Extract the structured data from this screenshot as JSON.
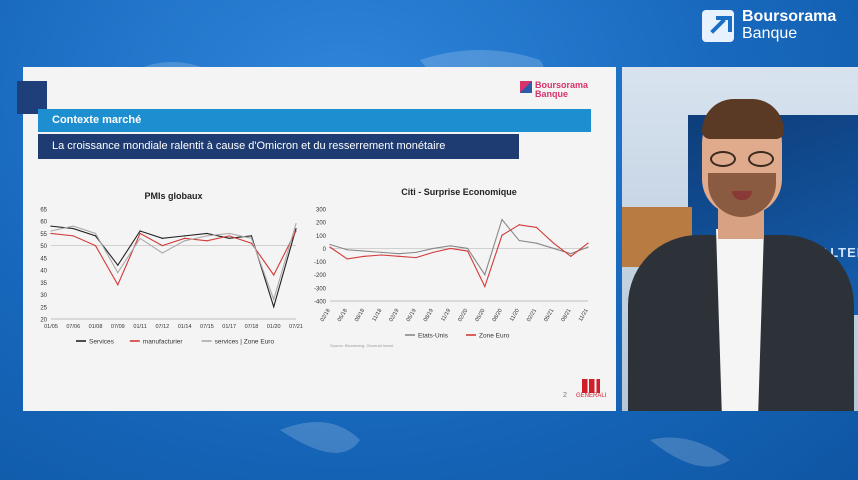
{
  "brand": {
    "line1": "Boursorama",
    "line2": "Banque"
  },
  "slide": {
    "logo_line1": "Boursorama",
    "logo_line2": "Banque",
    "header": "Contexte marché",
    "subtitle": "La croissance mondiale ralentit à cause d'Omicron et du resserrement monétaire",
    "page_number": "2",
    "sg_logo": "GENERALI"
  },
  "chart_data": [
    {
      "type": "line",
      "title": "PMIs globaux",
      "x": [
        "01/05",
        "07/06",
        "01/08",
        "07/09",
        "01/11",
        "07/12",
        "01/14",
        "07/15",
        "01/17",
        "07/18",
        "01/20",
        "07/21"
      ],
      "ylim": [
        20,
        65
      ],
      "yticks": [
        20,
        25,
        30,
        35,
        40,
        45,
        50,
        55,
        60,
        65
      ],
      "series": [
        {
          "name": "Services",
          "color": "#222222",
          "values": [
            58,
            57,
            54,
            42,
            56,
            53,
            54,
            55,
            53,
            54,
            25,
            57
          ]
        },
        {
          "name": "manufacturier",
          "color": "#d33a3a",
          "values": [
            55,
            54,
            50,
            34,
            55,
            50,
            53,
            52,
            54,
            51,
            38,
            56
          ]
        },
        {
          "name": "services | Zone Euro",
          "color": "#aaaaaa",
          "values": [
            56,
            58,
            55,
            39,
            53,
            47,
            52,
            54,
            55,
            53,
            28,
            59
          ]
        }
      ],
      "source": "Source: Bloomberg, Generali Invest"
    },
    {
      "type": "line",
      "title": "Citi - Surprise Economique",
      "x": [
        "02/18",
        "05/18",
        "08/18",
        "11/18",
        "02/19",
        "05/19",
        "08/19",
        "11/19",
        "02/20",
        "05/20",
        "08/20",
        "11/20",
        "02/21",
        "05/21",
        "08/21",
        "11/21"
      ],
      "ylim": [
        -400,
        300
      ],
      "yticks": [
        -400,
        -300,
        -200,
        -100,
        0,
        100,
        200,
        300
      ],
      "series": [
        {
          "name": "Etats-Unis",
          "color": "#888888",
          "values": [
            30,
            -10,
            -20,
            -30,
            -40,
            -30,
            0,
            20,
            0,
            -200,
            220,
            60,
            40,
            0,
            -40,
            10
          ]
        },
        {
          "name": "Zone Euro",
          "color": "#d33a3a",
          "values": [
            10,
            -80,
            -60,
            -50,
            -60,
            -70,
            -30,
            0,
            -20,
            -290,
            100,
            180,
            160,
            40,
            -60,
            40
          ]
        }
      ],
      "source": "Source: Bloomberg, Generali Invest"
    }
  ],
  "studio": {
    "screen_text": "S ALTER"
  }
}
